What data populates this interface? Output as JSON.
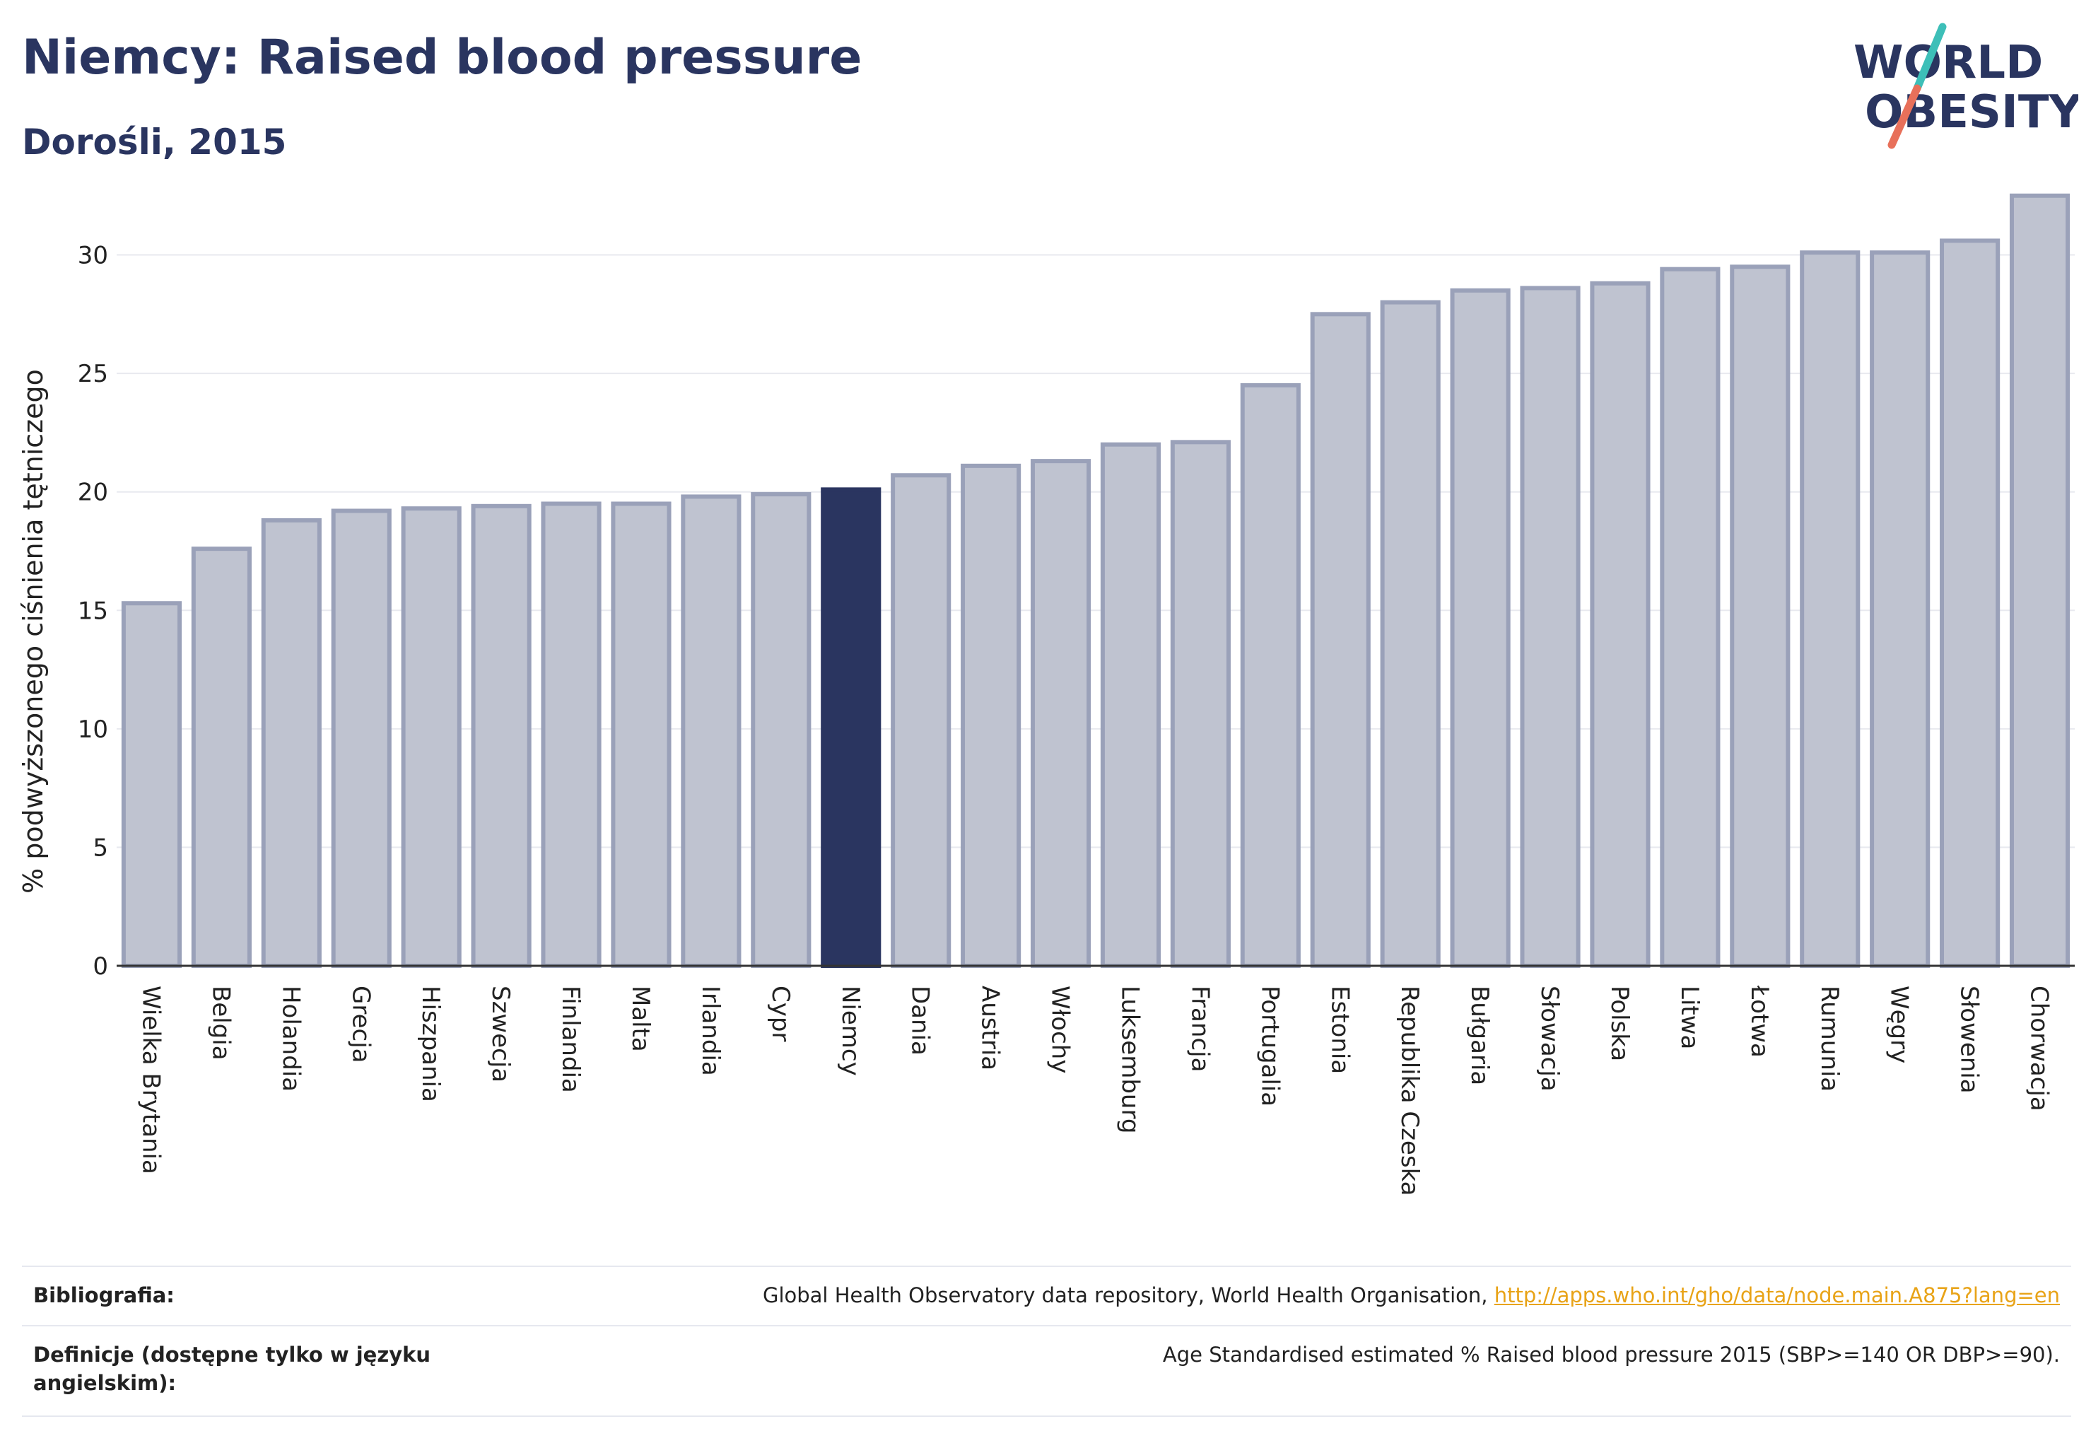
{
  "header": {
    "title": "Niemcy: Raised blood pressure",
    "subtitle": "Dorośli, 2015"
  },
  "logo": {
    "line1": "WORLD",
    "line2": "OBESITY",
    "icon": "world-obesity-slash-logo",
    "colors": {
      "text": "#2a3560",
      "slash_top": "#3dbfb8",
      "slash_bottom": "#e8705a"
    }
  },
  "chart_data": {
    "type": "bar",
    "ylabel": "% podwyższonego ciśnienia tętniczego",
    "xlabel": "",
    "ylim": [
      0,
      33
    ],
    "yticks": [
      0,
      5,
      10,
      15,
      20,
      25,
      30
    ],
    "grid": true,
    "highlight": "Niemcy",
    "colors": {
      "bar": "#bfc3d0",
      "bar_edge": "#9aa1b9",
      "highlight": "#2a3560",
      "grid": "#e8e9ef"
    },
    "categories": [
      "Wielka Brytania",
      "Belgia",
      "Holandia",
      "Grecja",
      "Hiszpania",
      "Szwecja",
      "Finlandia",
      "Malta",
      "Irlandia",
      "Cypr",
      "Niemcy",
      "Dania",
      "Austria",
      "Włochy",
      "Luksemburg",
      "Francja",
      "Portugalia",
      "Estonia",
      "Republika Czeska",
      "Bułgaria",
      "Słowacja",
      "Polska",
      "Litwa",
      "Łotwa",
      "Rumunia",
      "Węgry",
      "Słowenia",
      "Chorwacja"
    ],
    "values": [
      15.3,
      17.6,
      18.8,
      19.2,
      19.3,
      19.4,
      19.5,
      19.5,
      19.8,
      19.9,
      20.1,
      20.7,
      21.1,
      21.3,
      22.0,
      22.1,
      24.5,
      27.5,
      28.0,
      28.5,
      28.6,
      28.8,
      29.4,
      29.5,
      30.1,
      30.1,
      30.6,
      32.5
    ]
  },
  "footer": {
    "bibliography_label": "Bibliografia:",
    "bibliography_text": "Global Health Observatory data repository, World Health Organisation, ",
    "bibliography_link": "http://apps.who.int/gho/data/node.main.A875?lang=en",
    "definitions_label": "Definicje (dostępne tylko w języku angielskim):",
    "definitions_text": "Age Standardised estimated % Raised blood pressure 2015 (SBP>=140 OR DBP>=90)."
  }
}
